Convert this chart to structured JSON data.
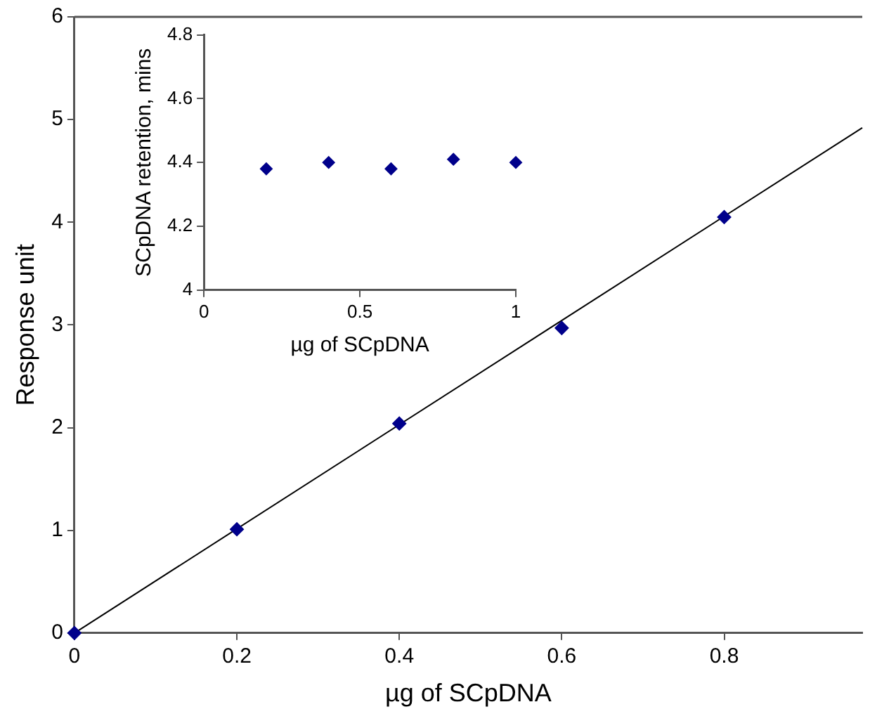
{
  "chart_data": [
    {
      "type": "scatter",
      "xlabel": "µg of SCpDNA",
      "ylabel": "Response unit",
      "xlim": [
        0,
        0.97
      ],
      "ylim": [
        0,
        6
      ],
      "xticks": [
        0,
        0.2,
        0.4,
        0.6,
        0.8
      ],
      "yticks": [
        0,
        1,
        2,
        3,
        4,
        5,
        6
      ],
      "grid": false,
      "legend": false,
      "marker": "diamond",
      "series": [
        {
          "type": "scatter",
          "color": "#00008b",
          "x": [
            0,
            0.2,
            0.4,
            0.6,
            0.8
          ],
          "values": [
            0,
            1.01,
            2.04,
            2.97,
            4.05
          ]
        },
        {
          "type": "line",
          "color": "#000000",
          "marker": "none",
          "line_style": "solid",
          "x": [
            0,
            0.97
          ],
          "values": [
            0,
            4.92
          ]
        }
      ]
    },
    {
      "type": "scatter",
      "xlabel": "µg of SCpDNA",
      "ylabel": "SCpDNA retention, mins",
      "xlim": [
        0,
        1
      ],
      "ylim": [
        4,
        4.8
      ],
      "xticks": [
        0,
        0.5,
        1
      ],
      "yticks": [
        4,
        4.2,
        4.4,
        4.6,
        4.8
      ],
      "grid": false,
      "legend": false,
      "marker": "diamond",
      "series": [
        {
          "type": "scatter",
          "color": "#00008b",
          "x": [
            0.2,
            0.4,
            0.6,
            0.8,
            1
          ],
          "values": [
            4.38,
            4.4,
            4.38,
            4.41,
            4.4
          ]
        }
      ]
    }
  ]
}
